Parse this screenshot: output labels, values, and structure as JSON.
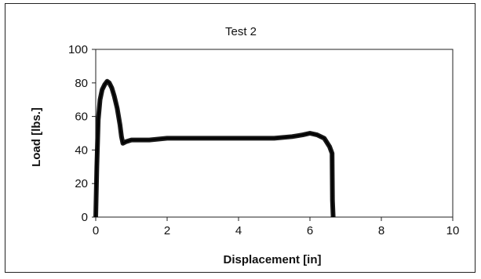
{
  "chart_data": {
    "type": "line",
    "title": "Test 2",
    "xlabel": "Displacement [in]",
    "ylabel": "Load [lbs.]",
    "xlim": [
      0,
      10
    ],
    "ylim": [
      0,
      100
    ],
    "xticks": [
      0,
      2,
      4,
      6,
      8,
      10
    ],
    "yticks": [
      0,
      20,
      40,
      60,
      80,
      100
    ],
    "grid": false,
    "legend": "none",
    "series": [
      {
        "color": "#000000",
        "x": [
          0,
          0.03,
          0.07,
          0.12,
          0.18,
          0.25,
          0.32,
          0.38,
          0.45,
          0.52,
          0.6,
          0.68,
          0.72,
          0.76,
          0.85,
          1.0,
          1.5,
          2.0,
          2.5,
          3.0,
          3.5,
          4.0,
          4.5,
          5.0,
          5.5,
          5.8,
          6.0,
          6.2,
          6.4,
          6.55,
          6.62,
          6.63,
          6.65
        ],
        "y": [
          0,
          30,
          58,
          70,
          76,
          79,
          81,
          80,
          77,
          72,
          65,
          55,
          48,
          44,
          45,
          46,
          46,
          47,
          47,
          47,
          47,
          47,
          47,
          47,
          48,
          49,
          50,
          49,
          47,
          42,
          38,
          10,
          0
        ]
      }
    ]
  }
}
